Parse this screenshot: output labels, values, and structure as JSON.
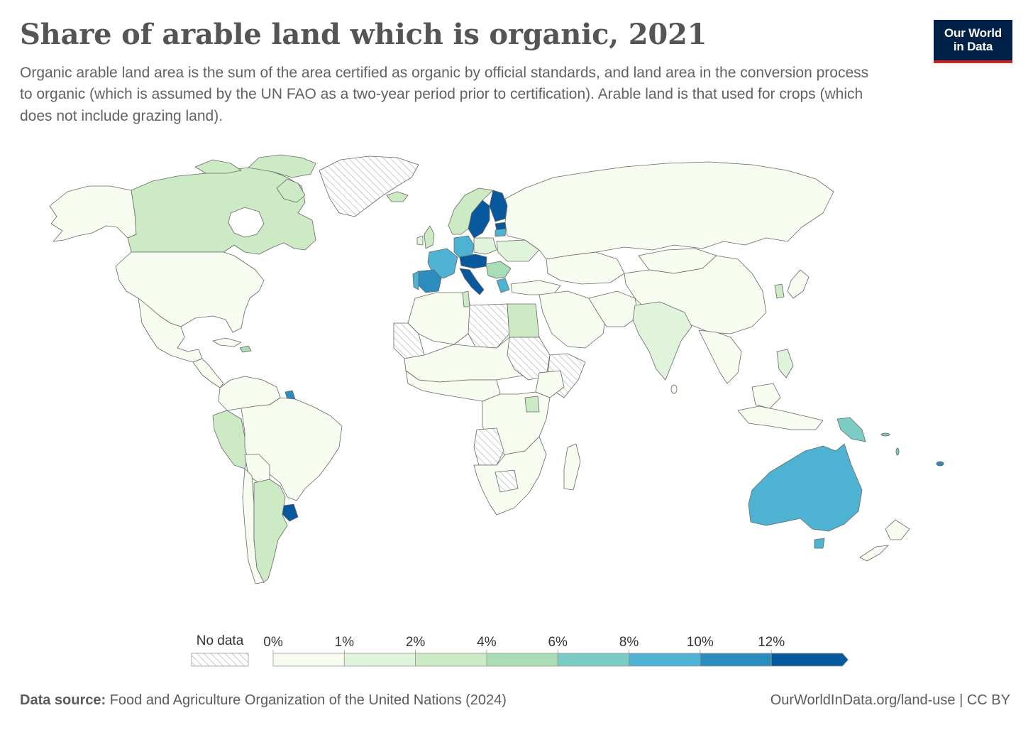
{
  "title": "Share of arable land which is organic, 2021",
  "subtitle": "Organic arable land area is the sum of the area certified as organic by official standards, and land area in the conversion process to organic (which is assumed by the UN FAO as a two-year period prior to certification). Arable land is that used for crops (which does not include grazing land).",
  "logo": {
    "line1": "Our World",
    "line2": "in Data"
  },
  "legend": {
    "no_data_label": "No data",
    "bins": [
      {
        "label": "0%",
        "color": "#f7fcf0"
      },
      {
        "label": "1%",
        "color": "#e0f3db"
      },
      {
        "label": "2%",
        "color": "#ccebc5"
      },
      {
        "label": "4%",
        "color": "#a8ddb5"
      },
      {
        "label": "6%",
        "color": "#7bccc4"
      },
      {
        "label": "8%",
        "color": "#4eb3d3"
      },
      {
        "label": "10%",
        "color": "#2b8cbe"
      },
      {
        "label": "12%",
        "color": "#08589e"
      }
    ]
  },
  "footer": {
    "source_label": "Data source:",
    "source_text": "Food and Agriculture Organization of the United Nations (2024)",
    "right_text": "OurWorldInData.org/land-use | CC BY"
  },
  "colors": {
    "no_data_hatch": "#cccccc",
    "border": "#666666",
    "logo_bg": "#002147",
    "logo_accent": "#ce261e"
  },
  "map_data": {
    "year": 2021,
    "unit": "% of arable land",
    "countries": [
      {
        "name": "Canada",
        "bin": 2
      },
      {
        "name": "United States",
        "bin": 0
      },
      {
        "name": "Mexico",
        "bin": 0
      },
      {
        "name": "Greenland",
        "bin": -1
      },
      {
        "name": "Peru",
        "bin": 2
      },
      {
        "name": "Argentina",
        "bin": 2
      },
      {
        "name": "Uruguay",
        "bin": 7
      },
      {
        "name": "French Guiana",
        "bin": 6
      },
      {
        "name": "Brazil",
        "bin": 0
      },
      {
        "name": "Sweden",
        "bin": 7
      },
      {
        "name": "Finland",
        "bin": 7
      },
      {
        "name": "Norway",
        "bin": 2
      },
      {
        "name": "Estonia",
        "bin": 7
      },
      {
        "name": "Latvia",
        "bin": 5
      },
      {
        "name": "Germany",
        "bin": 5
      },
      {
        "name": "France",
        "bin": 5
      },
      {
        "name": "Spain",
        "bin": 6
      },
      {
        "name": "Italy",
        "bin": 7
      },
      {
        "name": "Austria",
        "bin": 7
      },
      {
        "name": "Czechia",
        "bin": 6
      },
      {
        "name": "Greece",
        "bin": 5
      },
      {
        "name": "Egypt",
        "bin": 2
      },
      {
        "name": "Tunisia",
        "bin": 2
      },
      {
        "name": "India",
        "bin": 1
      },
      {
        "name": "Australia",
        "bin": 5
      },
      {
        "name": "Tasmania",
        "bin": 5
      },
      {
        "name": "Papua New Guinea",
        "bin": 4
      },
      {
        "name": "Samoa",
        "bin": 6
      },
      {
        "name": "Russia",
        "bin": 0
      },
      {
        "name": "China",
        "bin": 0
      },
      {
        "name": "South Korea",
        "bin": 2
      },
      {
        "name": "Tanzania",
        "bin": 2
      },
      {
        "name": "Western Sahara",
        "bin": -1
      },
      {
        "name": "Libya",
        "bin": -1
      },
      {
        "name": "Sudan",
        "bin": -1
      },
      {
        "name": "Somalia",
        "bin": -1
      },
      {
        "name": "Angola",
        "bin": -1
      },
      {
        "name": "Botswana",
        "bin": -1
      }
    ]
  }
}
